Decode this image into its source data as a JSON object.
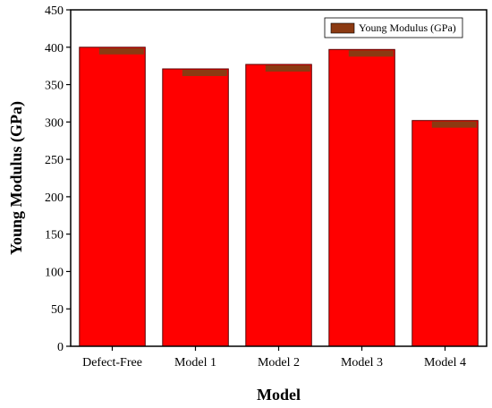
{
  "chart_data": {
    "type": "bar",
    "categories": [
      "Defect-Free",
      "Model 1",
      "Model 2",
      "Model 3",
      "Model 4"
    ],
    "series": [
      {
        "name": "Young Modulus (GPa)",
        "values": [
          400,
          371,
          377,
          397,
          302
        ]
      }
    ],
    "xlabel": "Model",
    "ylabel": "Young Modulus (GPa)",
    "ylim": [
      0,
      450
    ],
    "yticks": [
      0,
      50,
      100,
      150,
      200,
      250,
      300,
      350,
      400,
      450
    ],
    "grid": false,
    "legend_position": "top-right",
    "colors": {
      "bar_fill": "#ff0000",
      "bar_edge": "#5a0000",
      "bar_cap": "#8b3a12",
      "axis": "#000000"
    }
  }
}
